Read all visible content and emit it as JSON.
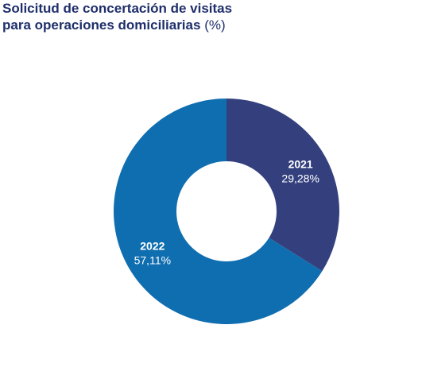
{
  "chart_data": {
    "type": "pie",
    "title_line1": "Solicitud de concertación de visitas",
    "title_line2": "para operaciones domiciliarias",
    "title_unit": "(%)",
    "donut": true,
    "slices": [
      {
        "label": "2021",
        "value": 29.28,
        "value_label": "29,28%",
        "color": "#34407e"
      },
      {
        "label": "2022",
        "value": 57.11,
        "value_label": "57,11%",
        "color": "#0f6eb0"
      }
    ]
  }
}
